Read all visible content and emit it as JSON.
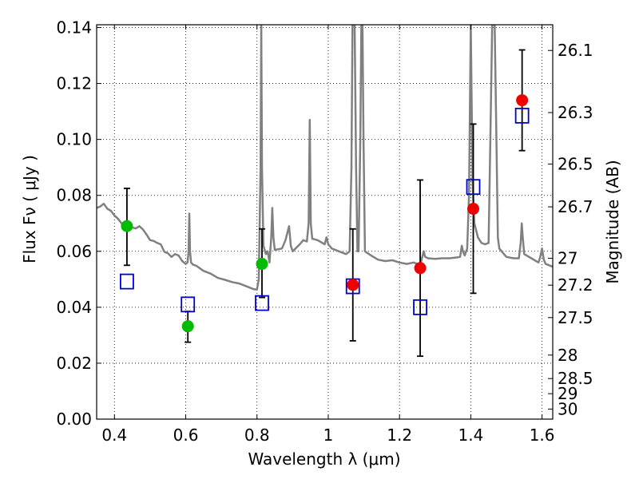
{
  "chart_data": {
    "type": "scatter",
    "xlabel": "Wavelength  λ (μm)",
    "ylabel": "Flux  Fν  ( μJy )",
    "y2label": "Magnitude (AB)",
    "xlim": [
      0.35,
      1.63
    ],
    "ylim": [
      0.0,
      0.141
    ],
    "grid": true,
    "x_ticks": [
      0.4,
      0.6,
      0.8,
      1.0,
      1.2,
      1.4,
      1.6
    ],
    "x_tick_labels": [
      "0.4",
      "0.6",
      "0.8",
      "1",
      "1.2",
      "1.4",
      "1.6"
    ],
    "y_ticks": [
      0.0,
      0.02,
      0.04,
      0.06,
      0.08,
      0.1,
      0.12,
      0.14
    ],
    "y_tick_labels": [
      "0.00",
      "0.02",
      "0.04",
      "0.06",
      "0.08",
      "0.10",
      "0.12",
      "0.14"
    ],
    "mag_ticks": [
      {
        "label": "26.1",
        "flux": 0.1318
      },
      {
        "label": "26.3",
        "flux": 0.1096
      },
      {
        "label": "26.5",
        "flux": 0.0912
      },
      {
        "label": "26.7",
        "flux": 0.0759
      },
      {
        "label": "27",
        "flux": 0.0575
      },
      {
        "label": "27.2",
        "flux": 0.0479
      },
      {
        "label": "27.5",
        "flux": 0.0363
      },
      {
        "label": "28",
        "flux": 0.0229
      },
      {
        "label": "28.5",
        "flux": 0.0145
      },
      {
        "label": "29",
        "flux": 0.0091
      },
      {
        "label": "30",
        "flux": 0.0036
      }
    ],
    "series": [
      {
        "name": "observed (green)",
        "marker": "circle",
        "color": "#00bb00",
        "points": [
          {
            "x": 0.435,
            "y": 0.069,
            "err_lo": 0.055,
            "err_hi": 0.0825
          },
          {
            "x": 0.606,
            "y": 0.0332,
            "err_lo": 0.0275,
            "err_hi": 0.0385
          },
          {
            "x": 0.814,
            "y": 0.0555,
            "err_lo": 0.0435,
            "err_hi": 0.068
          }
        ]
      },
      {
        "name": "observed (red)",
        "marker": "circle",
        "color": "#ee0000",
        "points": [
          {
            "x": 1.069,
            "y": 0.048,
            "err_lo": 0.028,
            "err_hi": 0.068
          },
          {
            "x": 1.258,
            "y": 0.054,
            "err_lo": 0.0225,
            "err_hi": 0.0855
          },
          {
            "x": 1.407,
            "y": 0.0752,
            "err_lo": 0.045,
            "err_hi": 0.1055
          },
          {
            "x": 1.544,
            "y": 0.114,
            "err_lo": 0.096,
            "err_hi": 0.132
          }
        ]
      },
      {
        "name": "model photometry",
        "marker": "square",
        "color": "#0000cc",
        "points": [
          {
            "x": 0.435,
            "y": 0.0492
          },
          {
            "x": 0.606,
            "y": 0.041
          },
          {
            "x": 0.814,
            "y": 0.0415
          },
          {
            "x": 1.069,
            "y": 0.0475
          },
          {
            "x": 1.258,
            "y": 0.04
          },
          {
            "x": 1.407,
            "y": 0.083
          },
          {
            "x": 1.544,
            "y": 0.1085
          }
        ]
      },
      {
        "name": "model spectrum",
        "marker": "line",
        "color": "#808080",
        "points": [
          [
            0.35,
            0.0755
          ],
          [
            0.36,
            0.076
          ],
          [
            0.37,
            0.077
          ],
          [
            0.38,
            0.0752
          ],
          [
            0.39,
            0.0745
          ],
          [
            0.4,
            0.0728
          ],
          [
            0.41,
            0.0716
          ],
          [
            0.42,
            0.07
          ],
          [
            0.43,
            0.0698
          ],
          [
            0.44,
            0.0695
          ],
          [
            0.45,
            0.0685
          ],
          [
            0.46,
            0.0682
          ],
          [
            0.47,
            0.069
          ],
          [
            0.48,
            0.0678
          ],
          [
            0.49,
            0.066
          ],
          [
            0.5,
            0.064
          ],
          [
            0.51,
            0.0637
          ],
          [
            0.52,
            0.063
          ],
          [
            0.53,
            0.0625
          ],
          [
            0.54,
            0.0598
          ],
          [
            0.55,
            0.0593
          ],
          [
            0.56,
            0.058
          ],
          [
            0.57,
            0.059
          ],
          [
            0.58,
            0.0585
          ],
          [
            0.59,
            0.0565
          ],
          [
            0.6,
            0.0555
          ],
          [
            0.605,
            0.056
          ],
          [
            0.608,
            0.06
          ],
          [
            0.61,
            0.0735
          ],
          [
            0.612,
            0.06
          ],
          [
            0.615,
            0.056
          ],
          [
            0.62,
            0.0553
          ],
          [
            0.63,
            0.0548
          ],
          [
            0.65,
            0.053
          ],
          [
            0.67,
            0.052
          ],
          [
            0.69,
            0.0505
          ],
          [
            0.71,
            0.0498
          ],
          [
            0.73,
            0.049
          ],
          [
            0.75,
            0.0485
          ],
          [
            0.77,
            0.0475
          ],
          [
            0.78,
            0.047
          ],
          [
            0.79,
            0.0465
          ],
          [
            0.8,
            0.0463
          ],
          [
            0.805,
            0.05
          ],
          [
            0.81,
            0.09
          ],
          [
            0.812,
            0.141
          ],
          [
            0.814,
            0.09
          ],
          [
            0.818,
            0.062
          ],
          [
            0.825,
            0.059
          ],
          [
            0.83,
            0.06
          ],
          [
            0.835,
            0.056
          ],
          [
            0.84,
            0.065
          ],
          [
            0.843,
            0.0755
          ],
          [
            0.846,
            0.065
          ],
          [
            0.85,
            0.0605
          ],
          [
            0.87,
            0.061
          ],
          [
            0.88,
            0.064
          ],
          [
            0.89,
            0.069
          ],
          [
            0.895,
            0.062
          ],
          [
            0.9,
            0.06
          ],
          [
            0.92,
            0.0625
          ],
          [
            0.93,
            0.064
          ],
          [
            0.94,
            0.0635
          ],
          [
            0.945,
            0.07
          ],
          [
            0.948,
            0.107
          ],
          [
            0.951,
            0.07
          ],
          [
            0.955,
            0.0645
          ],
          [
            0.97,
            0.064
          ],
          [
            0.99,
            0.0625
          ],
          [
            0.995,
            0.065
          ],
          [
            1.0,
            0.0625
          ],
          [
            1.01,
            0.061
          ],
          [
            1.03,
            0.06
          ],
          [
            1.05,
            0.059
          ],
          [
            1.06,
            0.06
          ],
          [
            1.065,
            0.09
          ],
          [
            1.068,
            0.141
          ],
          [
            1.074,
            0.141
          ],
          [
            1.078,
            0.09
          ],
          [
            1.082,
            0.06
          ],
          [
            1.085,
            0.06
          ],
          [
            1.09,
            0.1
          ],
          [
            1.093,
            0.141
          ],
          [
            1.096,
            0.141
          ],
          [
            1.099,
            0.1
          ],
          [
            1.103,
            0.06
          ],
          [
            1.12,
            0.0585
          ],
          [
            1.14,
            0.057
          ],
          [
            1.16,
            0.0565
          ],
          [
            1.18,
            0.0568
          ],
          [
            1.2,
            0.056
          ],
          [
            1.22,
            0.0555
          ],
          [
            1.24,
            0.056
          ],
          [
            1.25,
            0.0555
          ],
          [
            1.26,
            0.056
          ],
          [
            1.268,
            0.06
          ],
          [
            1.272,
            0.058
          ],
          [
            1.28,
            0.0575
          ],
          [
            1.3,
            0.0573
          ],
          [
            1.32,
            0.0575
          ],
          [
            1.34,
            0.0575
          ],
          [
            1.36,
            0.0578
          ],
          [
            1.37,
            0.058
          ],
          [
            1.375,
            0.062
          ],
          [
            1.378,
            0.06
          ],
          [
            1.383,
            0.0585
          ],
          [
            1.39,
            0.061
          ],
          [
            1.395,
            0.08
          ],
          [
            1.4,
            0.141
          ],
          [
            1.405,
            0.085
          ],
          [
            1.41,
            0.07
          ],
          [
            1.42,
            0.065
          ],
          [
            1.43,
            0.063
          ],
          [
            1.44,
            0.0625
          ],
          [
            1.45,
            0.063
          ],
          [
            1.455,
            0.1
          ],
          [
            1.46,
            0.141
          ],
          [
            1.467,
            0.141
          ],
          [
            1.472,
            0.1
          ],
          [
            1.476,
            0.065
          ],
          [
            1.48,
            0.061
          ],
          [
            1.5,
            0.058
          ],
          [
            1.52,
            0.0575
          ],
          [
            1.535,
            0.0575
          ],
          [
            1.54,
            0.063
          ],
          [
            1.543,
            0.07
          ],
          [
            1.546,
            0.065
          ],
          [
            1.55,
            0.059
          ],
          [
            1.57,
            0.0575
          ],
          [
            1.59,
            0.056
          ],
          [
            1.595,
            0.058
          ],
          [
            1.6,
            0.061
          ],
          [
            1.605,
            0.057
          ],
          [
            1.61,
            0.0555
          ],
          [
            1.62,
            0.055
          ],
          [
            1.63,
            0.0545
          ]
        ]
      }
    ]
  }
}
